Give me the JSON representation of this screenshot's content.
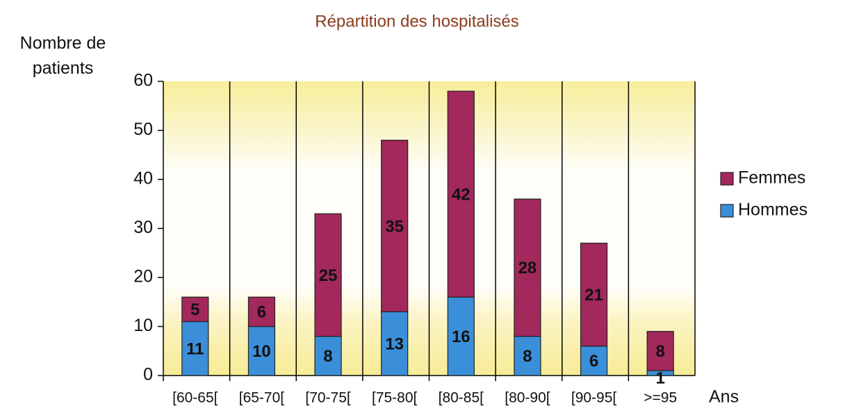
{
  "chart_data": {
    "type": "bar",
    "stacked": true,
    "title": "Répartition des hospitalisés",
    "ylabel": "Nombre de patients",
    "xlabel": "Ans",
    "categories": [
      "[60-65[",
      "[65-70[",
      "[70-75[",
      "[75-80[",
      "[80-85[",
      "[80-90[",
      "[90-95[",
      ">=95"
    ],
    "series": [
      {
        "name": "Hommes",
        "color": "#3b8fd9",
        "values": [
          11,
          10,
          8,
          13,
          16,
          8,
          6,
          1
        ]
      },
      {
        "name": "Femmes",
        "color": "#a3285c",
        "values": [
          5,
          6,
          25,
          35,
          42,
          28,
          21,
          8
        ]
      }
    ],
    "ylim": [
      0,
      60
    ],
    "yticks": [
      0,
      10,
      20,
      30,
      40,
      50,
      60
    ],
    "legend": "right"
  }
}
